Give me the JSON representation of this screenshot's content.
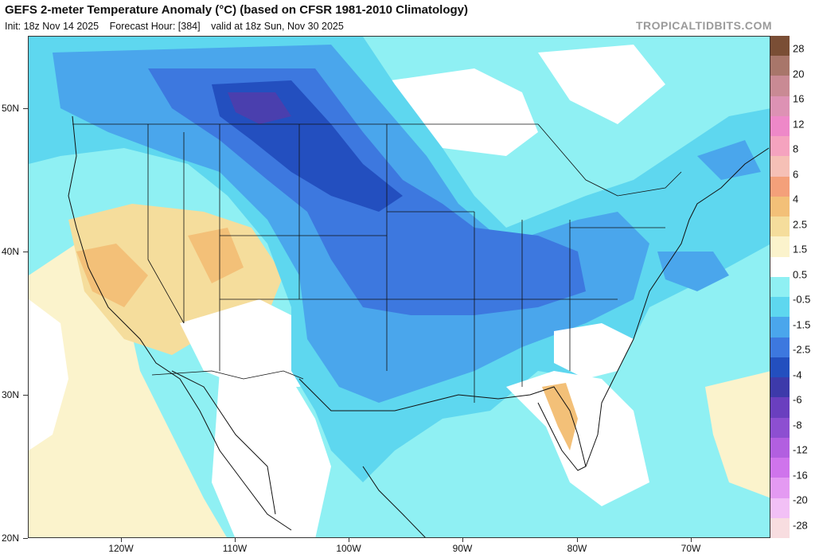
{
  "header": {
    "title": "GEFS 2-meter Temperature Anomaly (°C) (based on CFSR 1981-2010 Climatology)",
    "init": "Init: 18z Nov 14 2025",
    "forecast_hour": "Forecast Hour: [384]",
    "valid": "valid at 18z Sun, Nov 30 2025",
    "brand": "TROPICALTIDBITS.COM"
  },
  "axes": {
    "lat_labels": [
      "50N",
      "40N",
      "30N",
      "20N"
    ],
    "lon_labels": [
      "120W",
      "110W",
      "100W",
      "90W",
      "80W",
      "70W"
    ]
  },
  "colorbar": {
    "labels": [
      "28",
      "20",
      "16",
      "12",
      "8",
      "6",
      "4",
      "2.5",
      "1.5",
      "0.5",
      "-0.5",
      "-1.5",
      "-2.5",
      "-4",
      "-6",
      "-8",
      "-12",
      "-16",
      "-20",
      "-28"
    ],
    "colors": [
      "#7a4e35",
      "#a8766a",
      "#c98a94",
      "#dd92b4",
      "#ee88c8",
      "#f5a3bf",
      "#f6c0b6",
      "#f4a07a",
      "#f3c078",
      "#f5dd9c",
      "#fbf3cc",
      "#ffffff",
      "#8ff0f3",
      "#5ed7ef",
      "#4aa6ec",
      "#3d78df",
      "#234fbf",
      "#3d3aaa",
      "#6a3fbf",
      "#8d4fd1",
      "#b25fe0",
      "#cf74ec",
      "#e49af2",
      "#f2c0f6",
      "#f8dde0"
    ]
  },
  "palette": {
    "ocean_cyan": "#8ff0f3",
    "light_blue": "#5ed7ef",
    "mid_blue": "#4aa6ec",
    "blue": "#3d78df",
    "deep_blue": "#234fbf",
    "purple": "#4a3fae",
    "neutral": "#ffffff",
    "warm_pale": "#fbf3cc",
    "warm": "#f5dd9c",
    "warm_orange": "#f3c078"
  }
}
